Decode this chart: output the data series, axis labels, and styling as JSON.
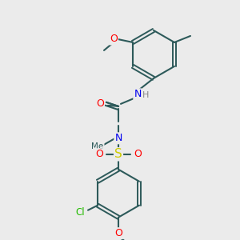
{
  "background_color": "#ebebeb",
  "bond_color": "#2d5a5a",
  "atom_colors": {
    "O": "#ff0000",
    "N": "#0000ee",
    "S": "#cccc00",
    "Cl": "#22bb00",
    "H": "#888888",
    "C": "#2d5a5a"
  },
  "figsize": [
    3.0,
    3.0
  ],
  "dpi": 100
}
